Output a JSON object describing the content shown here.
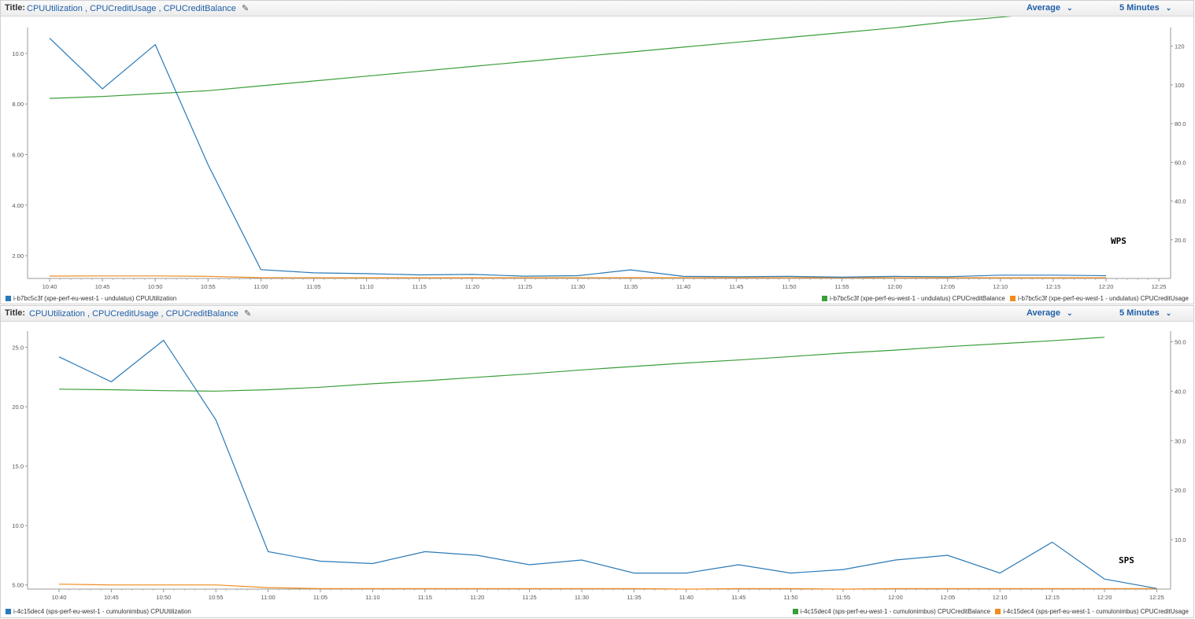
{
  "colors": {
    "blue": "#2a7ab8",
    "green": "#3a9e3a",
    "orange": "#f08c1e",
    "link": "#1f5fa8"
  },
  "panels": [
    {
      "title_label": "Title:",
      "title_value": "CPUUtilization , CPUCreditUsage , CPUCreditBalance",
      "statistic": "Average",
      "period": "5 Minutes",
      "annotation": "WPS",
      "legend_left": [
        {
          "label": "i-b7bc5c3f (xpe-perf-eu-west-1 - undulatus) CPUUtilization",
          "color": "#2a7ab8"
        }
      ],
      "legend_right": [
        {
          "label": "i-b7bc5c3f (xpe-perf-eu-west-1 - undulatus) CPUCreditBalance",
          "color": "#3a9e3a"
        },
        {
          "label": "i-b7bc5c3f (xpe-perf-eu-west-1 - undulatus) CPUCreditUsage",
          "color": "#f08c1e"
        }
      ]
    },
    {
      "title_label": "Title:",
      "title_value": "CPUUtilization , CPUCreditUsage , CPUCreditBalance",
      "statistic": "Average",
      "period": "5 Minutes",
      "annotation": "SPS",
      "legend_left": [
        {
          "label": "i-4c15dec4 (sps-perf-eu-west-1 - cumulonimbus) CPUUtilization",
          "color": "#2a7ab8"
        }
      ],
      "legend_right": [
        {
          "label": "i-4c15dec4 (sps-perf-eu-west-1 - cumulonimbus) CPUCreditBalance",
          "color": "#3a9e3a"
        },
        {
          "label": "i-4c15dec4 (sps-perf-eu-west-1 - cumulonimbus) CPUCreditUsage",
          "color": "#f08c1e"
        }
      ]
    }
  ],
  "chart_data": [
    {
      "type": "line",
      "title": "CPUUtilization , CPUCreditUsage , CPUCreditBalance",
      "x_ticks": [
        "10:40",
        "10:45",
        "10:50",
        "10:55",
        "11:00",
        "11:05",
        "11:10",
        "11:15",
        "11:20",
        "11:25",
        "11:30",
        "11:35",
        "11:40",
        "11:45",
        "11:50",
        "11:55",
        "12:00",
        "12:05",
        "12:10",
        "12:15",
        "12:20",
        "12:25"
      ],
      "y_left": {
        "ticks": [
          "2.00",
          "4.00",
          "6.00",
          "8.00",
          "10.0"
        ],
        "range": [
          1.1,
          10.9
        ]
      },
      "y_right": {
        "ticks": [
          "20.0",
          "40.0",
          "60.0",
          "80.0",
          "100",
          "120"
        ],
        "range": [
          0,
          128
        ]
      },
      "series": [
        {
          "name": "i-b7bc5c3f (xpe-perf-eu-west-1 - undulatus) CPUUtilization",
          "axis": "left",
          "color": "#2a7ab8",
          "x": [
            "10:40",
            "10:45",
            "10:50",
            "10:55",
            "11:00",
            "11:05",
            "11:10",
            "11:15",
            "11:20",
            "11:25",
            "11:30",
            "11:35",
            "11:40",
            "11:45",
            "11:50",
            "11:55",
            "12:00",
            "12:05",
            "12:10",
            "12:15",
            "12:20"
          ],
          "y": [
            10.6,
            8.6,
            10.35,
            5.6,
            1.45,
            1.32,
            1.29,
            1.24,
            1.26,
            1.19,
            1.21,
            1.44,
            1.18,
            1.17,
            1.18,
            1.15,
            1.18,
            1.17,
            1.23,
            1.23,
            1.21
          ]
        },
        {
          "name": "i-b7bc5c3f (xpe-perf-eu-west-1 - undulatus) CPUCreditBalance",
          "axis": "right",
          "color": "#3a9e3a",
          "x": [
            "10:40",
            "10:45",
            "10:50",
            "10:55",
            "11:00",
            "11:05",
            "11:10",
            "11:15",
            "11:20",
            "11:25",
            "11:30",
            "11:35",
            "11:40",
            "11:45",
            "11:50",
            "11:55",
            "12:00",
            "12:05",
            "12:10",
            "12:15",
            "12:20"
          ],
          "y": [
            93,
            94,
            95.5,
            97,
            99.5,
            102,
            104.5,
            107,
            109.5,
            112,
            114.5,
            117,
            119.5,
            122,
            124.5,
            127,
            129.5,
            132.5,
            135,
            137.5,
            140
          ]
        },
        {
          "name": "i-b7bc5c3f (xpe-perf-eu-west-1 - undulatus) CPUCreditUsage",
          "axis": "right",
          "color": "#f08c1e",
          "x": [
            "10:40",
            "10:45",
            "10:50",
            "10:55",
            "11:00",
            "11:05",
            "11:10",
            "11:15",
            "11:20",
            "11:25",
            "11:30",
            "11:35",
            "11:40",
            "11:45",
            "11:50",
            "11:55",
            "12:00",
            "12:05",
            "12:10",
            "12:15",
            "12:20"
          ],
          "y": [
            1.2,
            1.3,
            1.3,
            1.1,
            0.4,
            0.35,
            0.35,
            0.35,
            0.35,
            0.35,
            0.35,
            0.4,
            0.35,
            0.35,
            0.35,
            0.35,
            0.35,
            0.35,
            0.35,
            0.35,
            0.35
          ]
        }
      ]
    },
    {
      "type": "line",
      "title": "CPUUtilization , CPUCreditUsage , CPUCreditBalance",
      "x_ticks": [
        "10:40",
        "10:45",
        "10:50",
        "10:55",
        "11:00",
        "11:05",
        "11:10",
        "11:15",
        "11:20",
        "11:25",
        "11:30",
        "11:35",
        "11:40",
        "11:45",
        "11:50",
        "11:55",
        "12:00",
        "12:05",
        "12:10",
        "12:15",
        "12:20",
        "12:25"
      ],
      "y_left": {
        "ticks": [
          "5.00",
          "10.0",
          "15.0",
          "20.0",
          "25.0"
        ],
        "range": [
          4.65,
          26.1
        ]
      },
      "y_right": {
        "ticks": [
          "10.0",
          "20.0",
          "30.0",
          "40.0",
          "50.0"
        ],
        "range": [
          0,
          51.5
        ]
      },
      "series": [
        {
          "name": "i-4c15dec4 (sps-perf-eu-west-1 - cumulonimbus) CPUUtilization",
          "axis": "left",
          "color": "#2a7ab8",
          "x": [
            "10:40",
            "10:45",
            "10:50",
            "10:55",
            "11:00",
            "11:05",
            "11:10",
            "11:15",
            "11:20",
            "11:25",
            "11:30",
            "11:35",
            "11:40",
            "11:45",
            "11:50",
            "11:55",
            "12:00",
            "12:05",
            "12:10",
            "12:15",
            "12:20",
            "12:25"
          ],
          "y": [
            24.2,
            22.1,
            25.6,
            18.9,
            7.8,
            7.0,
            6.8,
            7.8,
            7.5,
            6.7,
            7.1,
            6.0,
            6.0,
            6.7,
            6.0,
            6.3,
            7.1,
            7.5,
            6.0,
            8.6,
            5.5,
            4.7
          ]
        },
        {
          "name": "i-4c15dec4 (sps-perf-eu-west-1 - cumulonimbus) CPUCreditBalance",
          "axis": "right",
          "color": "#3a9e3a",
          "x": [
            "10:40",
            "10:45",
            "10:50",
            "10:55",
            "11:00",
            "11:05",
            "11:10",
            "11:15",
            "11:20",
            "11:25",
            "11:30",
            "11:35",
            "11:40",
            "11:45",
            "11:50",
            "11:55",
            "12:00",
            "12:05",
            "12:10",
            "12:15",
            "12:20"
          ],
          "y": [
            40.4,
            40.3,
            40.1,
            40.0,
            40.3,
            40.8,
            41.5,
            42.1,
            42.8,
            43.5,
            44.3,
            45.0,
            45.7,
            46.3,
            47.0,
            47.7,
            48.3,
            49.0,
            49.6,
            50.2,
            50.9
          ]
        },
        {
          "name": "i-4c15dec4 (sps-perf-eu-west-1 - cumulonimbus) CPUCreditUsage",
          "axis": "right",
          "color": "#f08c1e",
          "x": [
            "10:40",
            "10:45",
            "10:50",
            "10:55",
            "11:00",
            "11:05",
            "11:10",
            "11:15",
            "11:20",
            "11:25",
            "11:30",
            "11:35",
            "11:40",
            "11:45",
            "11:50",
            "11:55",
            "12:00",
            "12:05",
            "12:10",
            "12:15",
            "12:20",
            "12:25"
          ],
          "y": [
            1.0,
            0.85,
            0.85,
            0.85,
            0.3,
            0.1,
            0.1,
            0.1,
            0.1,
            0.1,
            0.1,
            0.1,
            0.0,
            0.1,
            0.1,
            0.0,
            0.1,
            0.1,
            0.1,
            0.1,
            0.1,
            0.1
          ]
        }
      ]
    }
  ]
}
